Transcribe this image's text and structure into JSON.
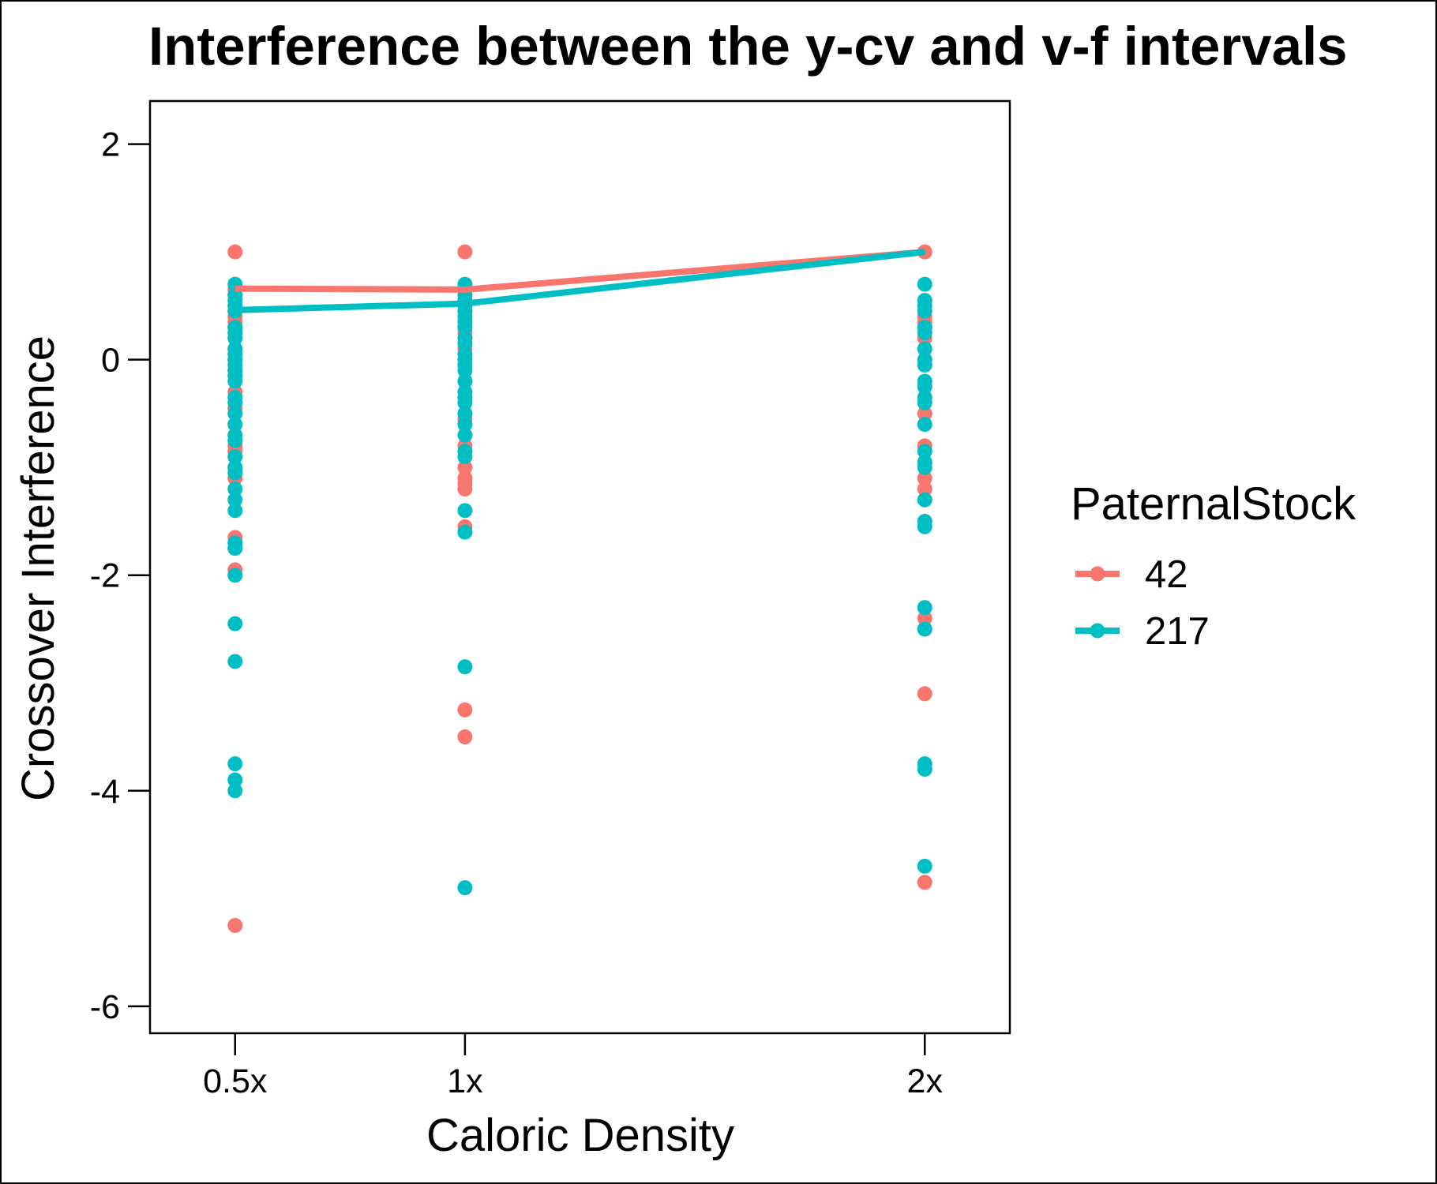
{
  "chart_data": {
    "type": "scatter",
    "title": "Interference between the y-cv and v-f intervals",
    "xlabel": "Caloric Density",
    "ylabel": "Crossover Interference",
    "categories": [
      "0.5x",
      "1x",
      "2x"
    ],
    "x_tick_labels": [
      "0.5x",
      "1x",
      "2x"
    ],
    "x_positions": [
      0.5,
      1,
      2
    ],
    "xlim": [
      0.315,
      2.185
    ],
    "ylim": [
      -6.25,
      2.4
    ],
    "y_ticks": [
      2,
      0,
      -2,
      -4,
      -6
    ],
    "y_tick_labels": [
      "2",
      "0",
      "-2",
      "-4",
      "-6"
    ],
    "grid": false,
    "legend": {
      "title": "PaternalStock",
      "position": "right"
    },
    "series": [
      {
        "name": "42",
        "color": "#F8766D",
        "means": [
          0.66,
          0.65,
          1.0
        ],
        "points": [
          [
            1.0,
            0.65,
            0.6,
            0.5,
            0.45,
            0.4,
            0.35,
            0.3,
            0.25,
            0.2,
            0.1,
            0.05,
            0.0,
            -0.1,
            -0.3,
            -0.45,
            -0.6,
            -0.8,
            -0.85,
            -1.0,
            -1.1,
            -1.65,
            -1.75,
            -1.95,
            -2.0,
            -5.25
          ],
          [
            1.0,
            0.65,
            0.55,
            0.5,
            0.45,
            0.35,
            0.3,
            0.25,
            0.1,
            -0.2,
            -0.55,
            -0.8,
            -1.0,
            -1.1,
            -1.15,
            -1.2,
            -1.55,
            -3.25,
            -3.5
          ],
          [
            1.0,
            0.4,
            0.35,
            0.3,
            0.2,
            -0.25,
            -0.5,
            -0.8,
            -1.1,
            -1.2,
            -1.3,
            -2.4,
            -2.5,
            -3.1,
            -4.85
          ]
        ]
      },
      {
        "name": "217",
        "color": "#00BFC4",
        "means": [
          0.46,
          0.52,
          1.0
        ],
        "points": [
          [
            0.7,
            0.6,
            0.55,
            0.5,
            0.45,
            0.3,
            0.25,
            0.2,
            0.1,
            0.05,
            0.0,
            -0.05,
            -0.1,
            -0.15,
            -0.2,
            -0.35,
            -0.4,
            -0.5,
            -0.6,
            -0.7,
            -0.75,
            -0.9,
            -1.0,
            -1.05,
            -1.2,
            -1.3,
            -1.4,
            -1.7,
            -1.75,
            -2.0,
            -2.45,
            -2.8,
            -3.75,
            -3.9,
            -4.0
          ],
          [
            0.7,
            0.6,
            0.55,
            0.5,
            0.45,
            0.4,
            0.35,
            0.3,
            0.2,
            0.15,
            0.05,
            0.0,
            -0.05,
            -0.1,
            -0.2,
            -0.3,
            -0.35,
            -0.4,
            -0.5,
            -0.6,
            -0.7,
            -0.85,
            -0.9,
            -1.4,
            -1.6,
            -2.85,
            -4.9
          ],
          [
            0.7,
            0.55,
            0.5,
            0.45,
            0.3,
            0.25,
            0.1,
            0.0,
            -0.05,
            -0.2,
            -0.25,
            -0.35,
            -0.4,
            -0.6,
            -0.85,
            -0.95,
            -1.0,
            -1.3,
            -1.5,
            -1.55,
            -2.3,
            -2.5,
            -3.75,
            -3.8,
            -4.7
          ]
        ]
      }
    ]
  }
}
